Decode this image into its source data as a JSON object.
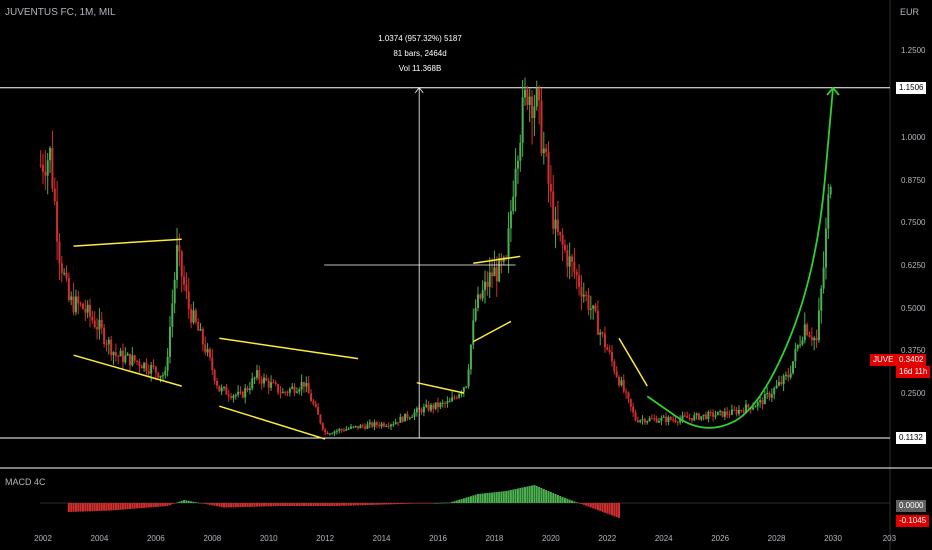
{
  "header": {
    "title": "JUVENTUS FC, 1M, MIL"
  },
  "currency": "EUR",
  "measure": {
    "line1": "1.0374 (957.32%) 5187",
    "line2": "81 bars, 2464d",
    "line3": "Vol 11.368B"
  },
  "macd": {
    "label": "MACD 4C"
  },
  "price_badges": {
    "resistance": "1.1506",
    "support": "0.1132",
    "ticker": "JUVE",
    "last_price": "0.3402",
    "countdown": "16d 11h",
    "macd_zero": "0.0000",
    "macd_value": "-0.1045"
  },
  "colors": {
    "bg": "#000000",
    "up": "#4caf50",
    "down": "#d32f2f",
    "trend": "#ffeb3b",
    "projection": "#32cd32",
    "level": "#ffffff",
    "badge_red": "#e00000",
    "axis_text": "#b2b5be"
  },
  "chart_data": {
    "type": "candlestick",
    "title": "JUVENTUS FC, 1M, MIL",
    "y_axis": {
      "unit": "EUR",
      "ticks": [
        "1.2500",
        "1.1506",
        "1.0000",
        "0.8750",
        "0.7500",
        "0.6250",
        "0.5000",
        "0.3750",
        "0.2500",
        "0.1132"
      ]
    },
    "x_axis": {
      "ticks": [
        "2002",
        "2004",
        "2006",
        "2008",
        "2010",
        "2012",
        "2014",
        "2016",
        "2018",
        "2020",
        "2022",
        "2024",
        "2026",
        "2028",
        "2030",
        "203"
      ]
    },
    "levels": [
      {
        "value": 1.1506
      },
      {
        "value": 0.1132
      }
    ],
    "last_price": 0.3402,
    "price_path": [
      {
        "t": "2001-12",
        "close": 0.92
      },
      {
        "t": "2002-04",
        "close": 0.95
      },
      {
        "t": "2002-08",
        "close": 0.66
      },
      {
        "t": "2002-12",
        "close": 0.52
      },
      {
        "t": "2003-06",
        "close": 0.5
      },
      {
        "t": "2004-01",
        "close": 0.44
      },
      {
        "t": "2004-08",
        "close": 0.36
      },
      {
        "t": "2005-06",
        "close": 0.34
      },
      {
        "t": "2006-05",
        "close": 0.3
      },
      {
        "t": "2006-10",
        "close": 0.66
      },
      {
        "t": "2007-03",
        "close": 0.5
      },
      {
        "t": "2007-10",
        "close": 0.38
      },
      {
        "t": "2008-04",
        "close": 0.26
      },
      {
        "t": "2009-01",
        "close": 0.24
      },
      {
        "t": "2009-08",
        "close": 0.3
      },
      {
        "t": "2010-07",
        "close": 0.25
      },
      {
        "t": "2011-04",
        "close": 0.28
      },
      {
        "t": "2012-01",
        "close": 0.13
      },
      {
        "t": "2013-06",
        "close": 0.15
      },
      {
        "t": "2014-06",
        "close": 0.16
      },
      {
        "t": "2015-06",
        "close": 0.2
      },
      {
        "t": "2016-06",
        "close": 0.22
      },
      {
        "t": "2017-01",
        "close": 0.28
      },
      {
        "t": "2017-05",
        "close": 0.5
      },
      {
        "t": "2017-12",
        "close": 0.6
      },
      {
        "t": "2018-06",
        "close": 0.62
      },
      {
        "t": "2018-10",
        "close": 0.95
      },
      {
        "t": "2019-03",
        "close": 1.15
      },
      {
        "t": "2019-07",
        "close": 1.1
      },
      {
        "t": "2020-03",
        "close": 0.72
      },
      {
        "t": "2020-10",
        "close": 0.62
      },
      {
        "t": "2021-06",
        "close": 0.5
      },
      {
        "t": "2022-03",
        "close": 0.34
      },
      {
        "t": "2023-01",
        "close": 0.17
      },
      {
        "t": "2024-06",
        "close": 0.17
      },
      {
        "t": "2025-06",
        "close": 0.18
      },
      {
        "t": "2026-06",
        "close": 0.19
      },
      {
        "t": "2027-06",
        "close": 0.22
      },
      {
        "t": "2028-06",
        "close": 0.3
      },
      {
        "t": "2029-01",
        "close": 0.45
      },
      {
        "t": "2029-06",
        "close": 0.4
      },
      {
        "t": "2029-09",
        "close": 0.62
      },
      {
        "t": "2029-12",
        "close": 0.9
      }
    ],
    "trend_lines": [
      [
        [
          "2003-02",
          0.68
        ],
        [
          "2006-12",
          0.7
        ]
      ],
      [
        [
          "2003-02",
          0.36
        ],
        [
          "2006-12",
          0.27
        ]
      ],
      [
        [
          "2008-04",
          0.41
        ],
        [
          "2013-03",
          0.35
        ]
      ],
      [
        [
          "2008-04",
          0.21
        ],
        [
          "2012-01",
          0.11
        ]
      ],
      [
        [
          "2015-04",
          0.28
        ],
        [
          "2016-12",
          0.25
        ]
      ],
      [
        [
          "2017-04",
          0.63
        ],
        [
          "2018-12",
          0.65
        ]
      ],
      [
        [
          "2017-04",
          0.4
        ],
        [
          "2018-08",
          0.46
        ]
      ],
      [
        [
          "2022-06",
          0.41
        ],
        [
          "2023-06",
          0.27
        ]
      ]
    ],
    "projection_curve": [
      [
        "2023-06",
        0.24
      ],
      [
        "2025-06",
        0.12
      ],
      [
        "2027-06",
        0.2
      ],
      [
        "2029-06",
        0.6
      ],
      [
        "2030-01",
        1.15
      ]
    ],
    "measure_tool": {
      "from": [
        "2015-05",
        0.1132
      ],
      "to": [
        "2015-05",
        1.1506
      ]
    },
    "macd_histogram": [
      {
        "t": "2002-12",
        "v": -0.06
      },
      {
        "t": "2004-06",
        "v": -0.05
      },
      {
        "t": "2006-06",
        "v": -0.02
      },
      {
        "t": "2007-01",
        "v": 0.02
      },
      {
        "t": "2008-06",
        "v": -0.03
      },
      {
        "t": "2010-06",
        "v": -0.02
      },
      {
        "t": "2012-06",
        "v": -0.02
      },
      {
        "t": "2015-01",
        "v": -0.005
      },
      {
        "t": "2016-06",
        "v": 0.003
      },
      {
        "t": "2017-06",
        "v": 0.06
      },
      {
        "t": "2018-06",
        "v": 0.08
      },
      {
        "t": "2019-06",
        "v": 0.12
      },
      {
        "t": "2020-06",
        "v": 0.04
      },
      {
        "t": "2021-06",
        "v": -0.03
      },
      {
        "t": "2022-06",
        "v": -0.1
      }
    ]
  }
}
